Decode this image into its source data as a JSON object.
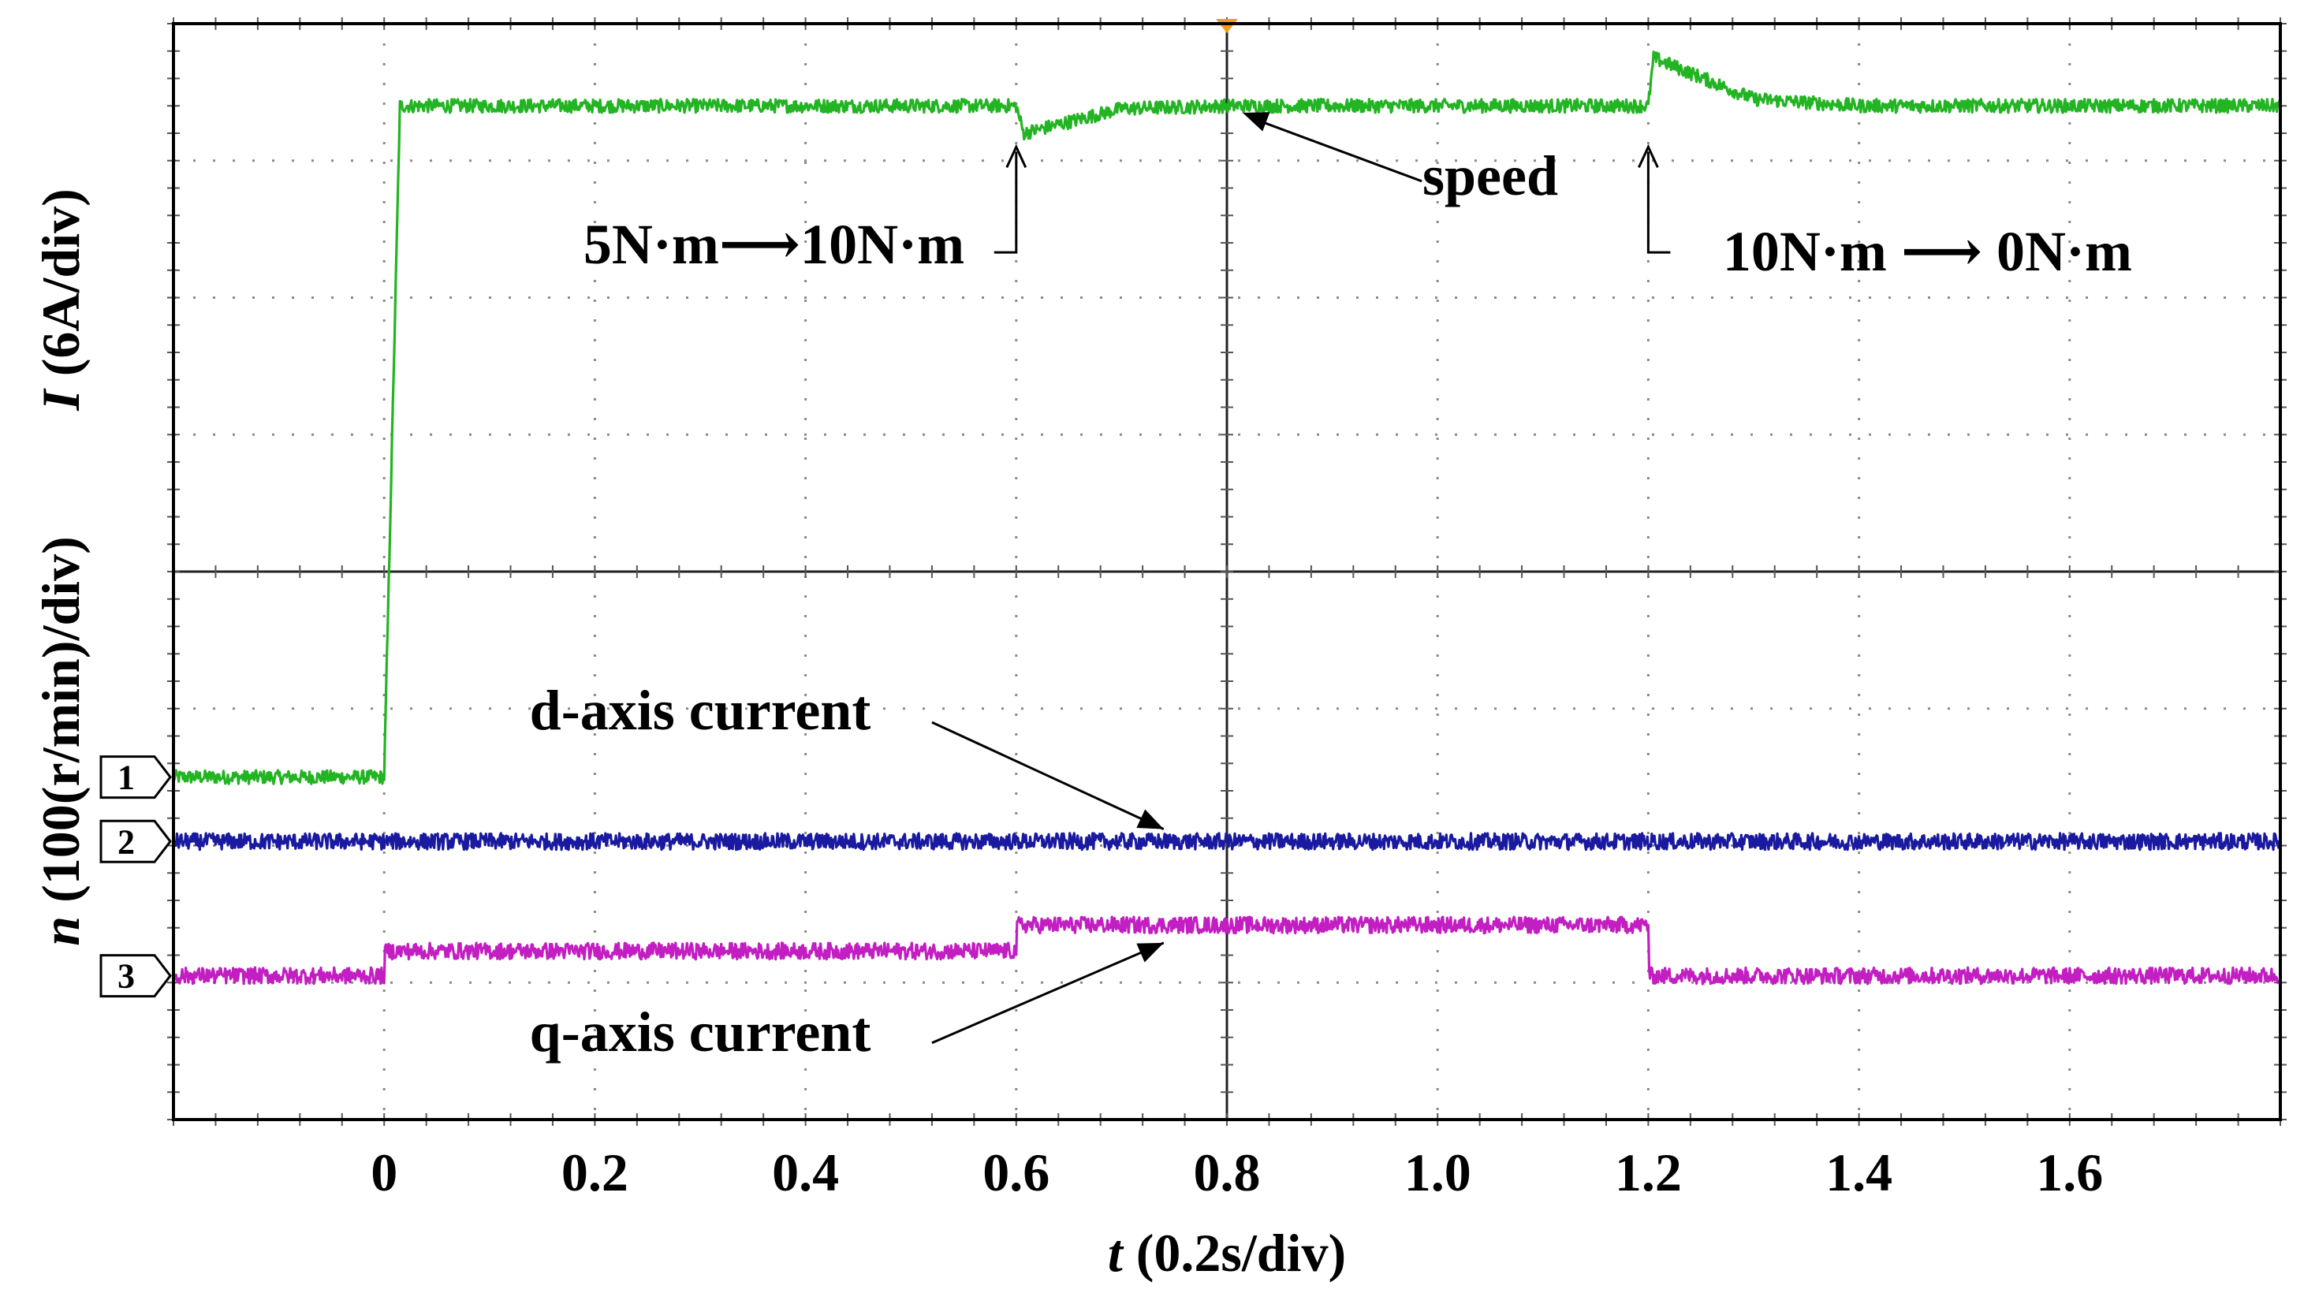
{
  "chart_data": {
    "type": "line",
    "title": "",
    "xlabel": "t (0.2s/div)",
    "xlabel_var": "t",
    "xlabel_unit": " (0.2s/div)",
    "ylabel_bottom": "n (100(r/min)/div)",
    "ylabel_bottom_var": "n",
    "ylabel_bottom_unit": " (100(r/min)/div)",
    "ylabel_top": "I (6A/div)",
    "ylabel_top_var": "I",
    "ylabel_top_unit": " (6A/div)",
    "xlim": [
      -0.2,
      1.8
    ],
    "ylim": [
      0,
      8
    ],
    "grid": true,
    "x_ticks": [
      "0",
      "0.2",
      "0.4",
      "0.6",
      "0.8",
      "1.0",
      "1.2",
      "1.4",
      "1.6"
    ],
    "x_tick_values": [
      0,
      0.2,
      0.4,
      0.6,
      0.8,
      1.0,
      1.2,
      1.4,
      1.6
    ],
    "channel_markers": [
      "1",
      "2",
      "3"
    ],
    "channel_marker_levels": [
      2.5,
      2.03,
      1.05
    ],
    "series": [
      {
        "name": "speed",
        "channel": "1",
        "color": "#22b422",
        "noise": 0.05,
        "points": [
          [
            -0.2,
            2.5
          ],
          [
            0.0,
            2.5
          ],
          [
            0.015,
            7.4
          ],
          [
            0.6,
            7.4
          ],
          [
            0.607,
            7.2
          ],
          [
            0.7,
            7.38
          ],
          [
            0.8,
            7.4
          ],
          [
            1.2,
            7.4
          ],
          [
            1.205,
            7.75
          ],
          [
            1.3,
            7.45
          ],
          [
            1.4,
            7.4
          ],
          [
            1.8,
            7.4
          ]
        ]
      },
      {
        "name": "d-axis current",
        "channel": "2",
        "color": "#1a1aa0",
        "noise": 0.06,
        "points": [
          [
            -0.2,
            2.03
          ],
          [
            1.8,
            2.03
          ]
        ]
      },
      {
        "name": "q-axis current",
        "channel": "3",
        "color": "#c21ec2",
        "noise": 0.06,
        "points": [
          [
            -0.2,
            1.05
          ],
          [
            0.0,
            1.05
          ],
          [
            0.001,
            1.23
          ],
          [
            0.6,
            1.23
          ],
          [
            0.601,
            1.42
          ],
          [
            1.2,
            1.42
          ],
          [
            1.201,
            1.05
          ],
          [
            1.8,
            1.05
          ]
        ]
      }
    ],
    "annotations": [
      {
        "text": "5N·m⟶10N·m",
        "at_x": 0.6,
        "label_x": 0.37,
        "label_y": 6.25
      },
      {
        "text": "speed",
        "at_x": 0.8,
        "label_x": 1.05,
        "label_y": 6.75
      },
      {
        "text": "10N·m ⟶ 0N·m",
        "at_x": 1.2,
        "label_x": 1.465,
        "label_y": 6.2
      },
      {
        "text": "d-axis current",
        "at_x": 0.74,
        "label_x": 0.3,
        "label_y": 2.85
      },
      {
        "text": "q-axis current",
        "at_x": 0.74,
        "label_x": 0.3,
        "label_y": 0.5
      }
    ]
  }
}
